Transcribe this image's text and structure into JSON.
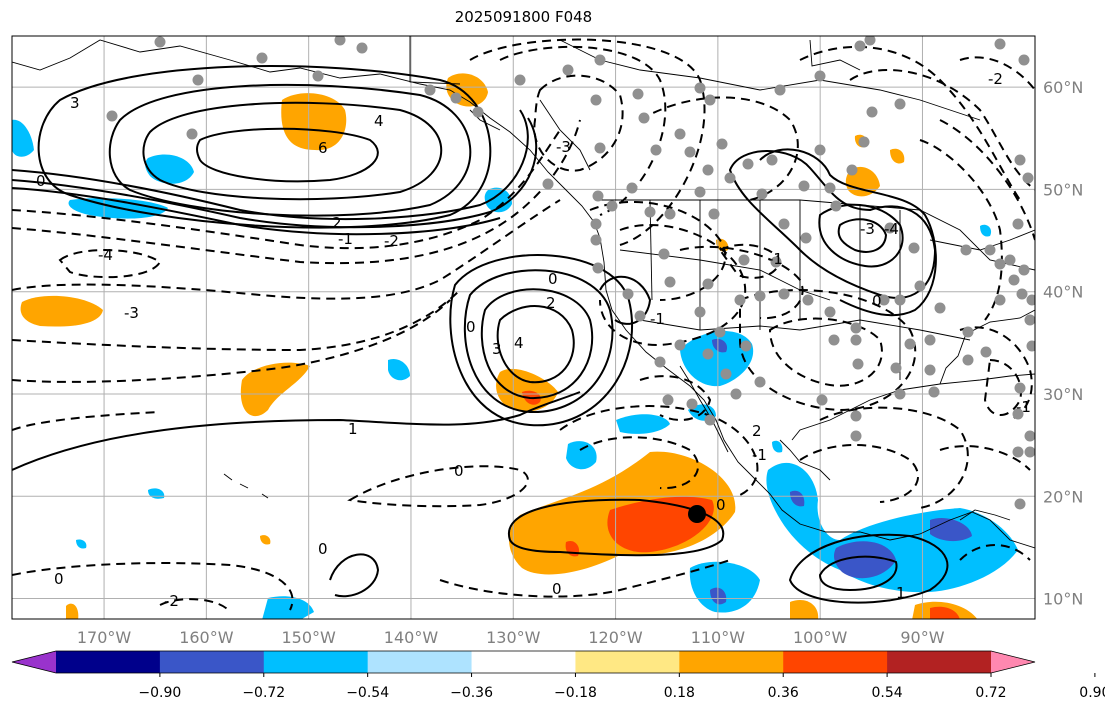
{
  "title": "2025091800 F048",
  "map": {
    "lon_labels": [
      "170°W",
      "160°W",
      "150°W",
      "140°W",
      "130°W",
      "120°W",
      "110°W",
      "100°W",
      "90°W"
    ],
    "lon_values": [
      -170,
      -160,
      -150,
      -140,
      -130,
      -120,
      -110,
      -100,
      -90
    ],
    "lat_labels": [
      "60°N",
      "50°N",
      "40°N",
      "30°N",
      "20°N",
      "10°N"
    ],
    "lat_values": [
      60,
      50,
      40,
      30,
      20,
      10
    ],
    "lon_range": [
      -179,
      -79
    ],
    "lat_range": [
      8,
      65
    ],
    "contour_labels": [
      "3",
      "4",
      "6",
      "2",
      "0",
      "-1",
      "-2",
      "-4",
      "-3",
      "0",
      "2",
      "3",
      "4",
      "-1",
      "0",
      "0",
      "0",
      "-1",
      "2",
      "-3",
      "1",
      "-3",
      "-4",
      "0",
      "0",
      "0",
      "1",
      "-2",
      "0",
      "-1",
      "-2",
      "-1"
    ]
  },
  "colorbar": {
    "tick_labels": [
      "−0.90",
      "−0.72",
      "−0.54",
      "−0.36",
      "−0.18",
      "0.18",
      "0.36",
      "0.54",
      "0.72",
      "0.90"
    ],
    "tick_values": [
      -0.9,
      -0.72,
      -0.54,
      -0.36,
      -0.18,
      0.18,
      0.36,
      0.54,
      0.72,
      0.9
    ],
    "colors": [
      "#9933cc",
      "#00008b",
      "#3a56c8",
      "#00bfff",
      "#aee3ff",
      "#ffffff",
      "#ffe884",
      "#ffa500",
      "#ff4500",
      "#b22222",
      "#ff88b0"
    ]
  }
}
